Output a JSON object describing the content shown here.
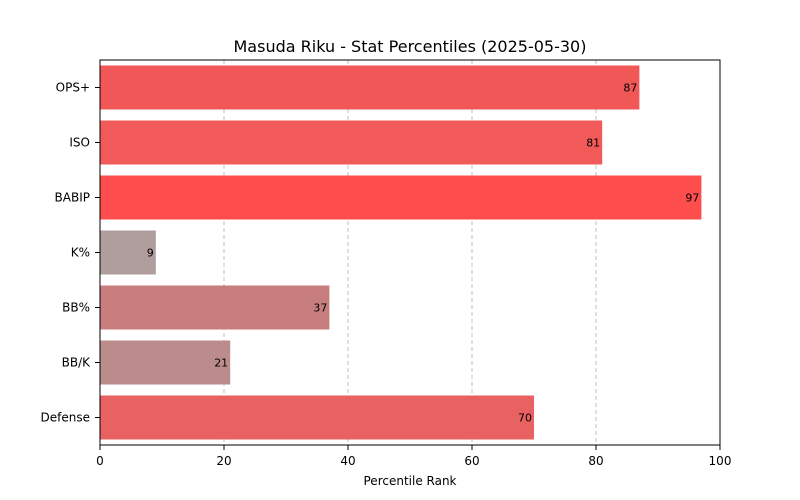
{
  "chart_data": {
    "type": "bar",
    "orientation": "horizontal",
    "title": "Masuda Riku - Stat Percentiles (2025-05-30)",
    "xlabel": "Percentile Rank",
    "ylabel": "",
    "xlim": [
      0,
      100
    ],
    "xticks": [
      0,
      20,
      40,
      60,
      80,
      100
    ],
    "grid": "x-dashed",
    "categories": [
      "OPS+",
      "ISO",
      "BABIP",
      "K%",
      "BB%",
      "BB/K",
      "Defense"
    ],
    "values": [
      87,
      81,
      97,
      9,
      37,
      21,
      70
    ],
    "colors": [
      "#f25757",
      "#f25a5a",
      "#fd4d4d",
      "#b09e9e",
      "#c87e7e",
      "#bc8c8c",
      "#e96262"
    ]
  }
}
